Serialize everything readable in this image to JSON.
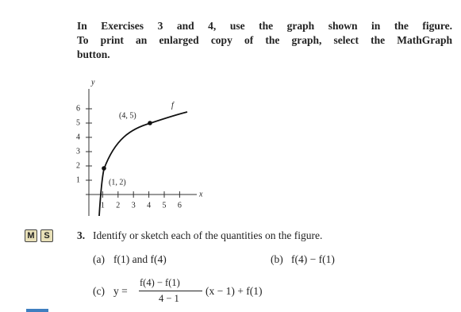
{
  "instructions": {
    "lines": [
      "In Exercises 3 and 4, use the graph shown in the figure.",
      "To print an enlarged copy of the graph, select the MathGraph",
      "button."
    ]
  },
  "figure": {
    "y_axis_label": "y",
    "x_axis_label": "x",
    "xticks": [
      "1",
      "2",
      "3",
      "4",
      "5",
      "6"
    ],
    "yticks": [
      "1",
      "2",
      "3",
      "4",
      "5",
      "6"
    ],
    "curve_label": "f",
    "points": [
      {
        "label": "(1, 2)"
      },
      {
        "label": "(4, 5)"
      }
    ]
  },
  "exercise": {
    "buttons": [
      "M",
      "S"
    ],
    "number": "3.",
    "prompt": "Identify or sketch each of the quantities on the figure.",
    "parts": [
      {
        "label": "(a)",
        "text": "f(1) and f(4)"
      },
      {
        "label": "(b)",
        "text": "f(4) − f(1)"
      },
      {
        "label": "(c)",
        "lhs": "y =",
        "numerator": "f(4) − f(1)",
        "denominator": "4 − 1",
        "rest": "(x − 1) + f(1)"
      }
    ]
  }
}
